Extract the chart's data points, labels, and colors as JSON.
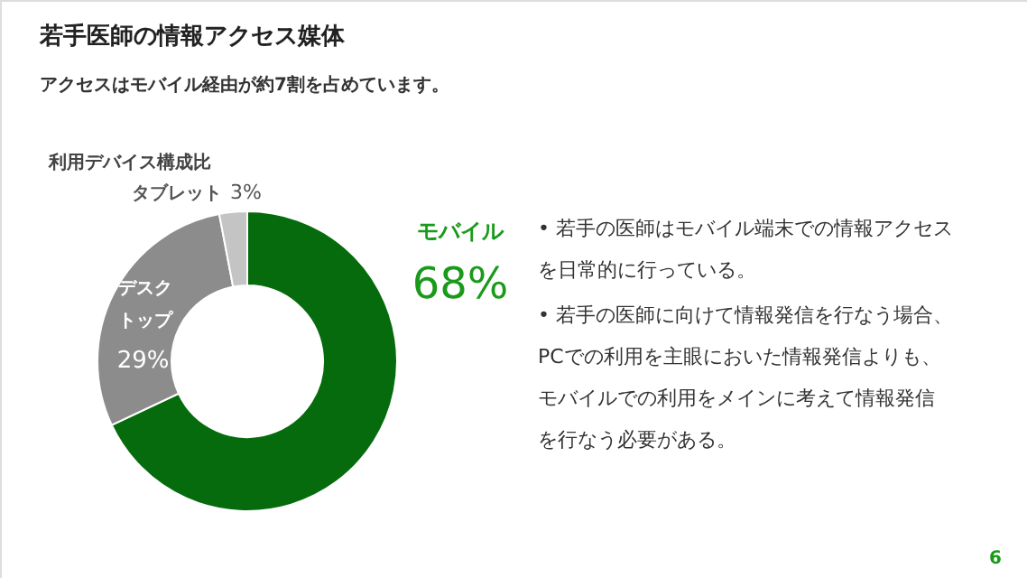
{
  "chart_data": {
    "type": "donut",
    "title": "若手医師の情報アクセス媒体",
    "subtitle": "アクセスはモバイル経由が約7割を占めています。",
    "categories": [
      "モバイル",
      "デスクトップ",
      "タブレット"
    ],
    "values": [
      68,
      29,
      3
    ],
    "colors": [
      "#056b0d",
      "#8c8c8c",
      "#c4c4c4"
    ],
    "value_labels": [
      "68%",
      "29%",
      "3%"
    ],
    "annotations": [
      "利用デバイス構成比",
      "• 若手の医師はモバイル端末での情報アクセスを日常的に行っている。",
      "• 若手の医師に向けて情報発信を行なう場合、PCでの利用を主眼においた情報発信よりも、モバイルでの利用をメインに考えて情報発信を行なう必要がある。",
      "6"
    ]
  }
}
